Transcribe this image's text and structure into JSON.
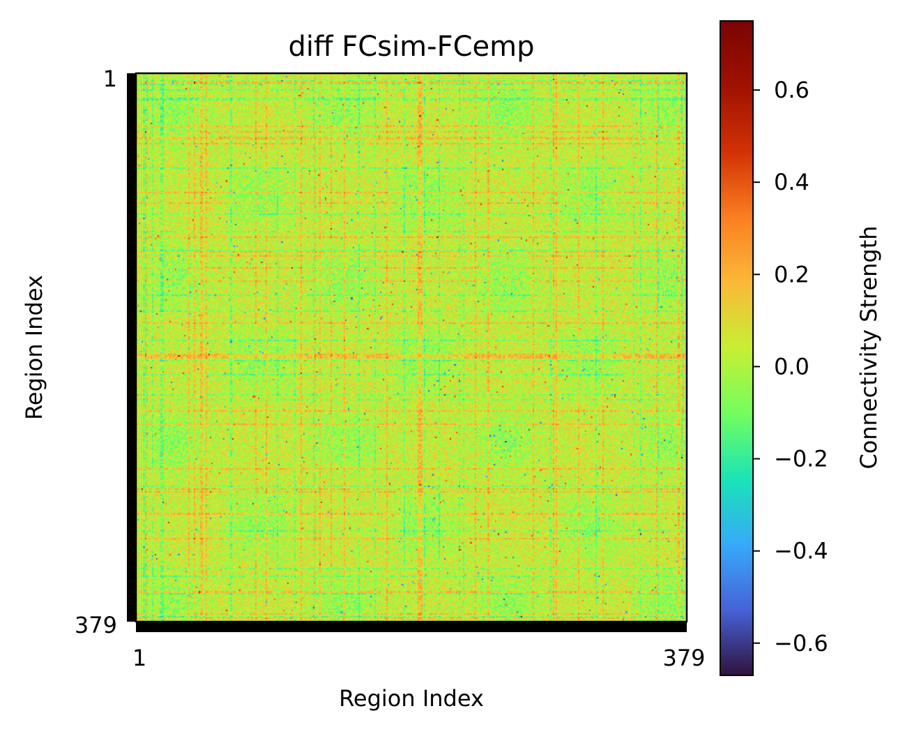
{
  "chart_data": {
    "type": "heatmap",
    "title": "diff FCsim-FCemp",
    "xlabel": "Region Index",
    "ylabel": "Region Index",
    "x_ticks": [
      "1",
      "379"
    ],
    "y_ticks": [
      "1",
      "379"
    ],
    "rows": 379,
    "cols": 379,
    "colormap": "turbo",
    "colorbar": {
      "label": "Connectivity Strength",
      "range": [
        -0.67,
        0.75
      ],
      "ticks": [
        {
          "value": -0.6,
          "label": "−0.6"
        },
        {
          "value": -0.4,
          "label": "−0.4"
        },
        {
          "value": -0.2,
          "label": "−0.2"
        },
        {
          "value": 0.0,
          "label": "0.0"
        },
        {
          "value": 0.2,
          "label": "0.2"
        },
        {
          "value": 0.4,
          "label": "0.4"
        },
        {
          "value": 0.6,
          "label": "0.6"
        }
      ]
    },
    "value_summary": {
      "typical_range": [
        -0.2,
        0.2
      ],
      "min": -0.67,
      "max": 0.75,
      "note": "values near 0.0 dominate; matrix is symmetric with block structure"
    }
  }
}
